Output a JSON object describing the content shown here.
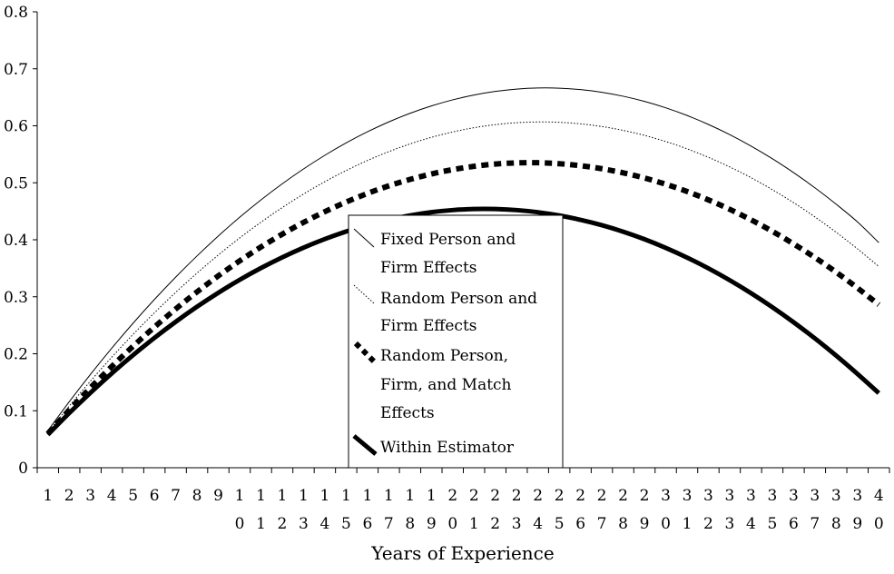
{
  "chart_data": {
    "type": "line",
    "title": "",
    "xlabel": "Years of Experience",
    "ylabel": "",
    "ylim": [
      0,
      0.8
    ],
    "yticks": [
      "0",
      "0.1",
      "0.2",
      "0.3",
      "0.4",
      "0.5",
      "0.6",
      "0.7",
      "0.8"
    ],
    "xlim": [
      1,
      40
    ],
    "x": [
      1,
      2,
      3,
      4,
      5,
      6,
      7,
      8,
      9,
      10,
      11,
      12,
      13,
      14,
      15,
      16,
      17,
      18,
      19,
      20,
      21,
      22,
      23,
      24,
      25,
      26,
      27,
      28,
      29,
      30,
      31,
      32,
      33,
      34,
      35,
      36,
      37,
      38,
      39,
      40
    ],
    "xtick_labels": [
      [
        "1",
        ""
      ],
      [
        "2",
        ""
      ],
      [
        "3",
        ""
      ],
      [
        "4",
        ""
      ],
      [
        "5",
        ""
      ],
      [
        "6",
        ""
      ],
      [
        "7",
        ""
      ],
      [
        "8",
        ""
      ],
      [
        "9",
        ""
      ],
      [
        "1",
        "0"
      ],
      [
        "1",
        "1"
      ],
      [
        "1",
        "2"
      ],
      [
        "1",
        "3"
      ],
      [
        "1",
        "4"
      ],
      [
        "1",
        "5"
      ],
      [
        "1",
        "6"
      ],
      [
        "1",
        "7"
      ],
      [
        "1",
        "8"
      ],
      [
        "1",
        "9"
      ],
      [
        "2",
        "0"
      ],
      [
        "2",
        "1"
      ],
      [
        "2",
        "2"
      ],
      [
        "2",
        "3"
      ],
      [
        "2",
        "4"
      ],
      [
        "2",
        "5"
      ],
      [
        "2",
        "6"
      ],
      [
        "2",
        "7"
      ],
      [
        "2",
        "8"
      ],
      [
        "2",
        "9"
      ],
      [
        "3",
        "0"
      ],
      [
        "3",
        "1"
      ],
      [
        "3",
        "2"
      ],
      [
        "3",
        "3"
      ],
      [
        "3",
        "4"
      ],
      [
        "3",
        "5"
      ],
      [
        "3",
        "6"
      ],
      [
        "3",
        "7"
      ],
      [
        "3",
        "8"
      ],
      [
        "3",
        "9"
      ],
      [
        "4",
        "0"
      ]
    ],
    "grid": false,
    "legend_position": "center",
    "series": [
      {
        "name": "Fixed Person and Firm Effects",
        "style": "thin-solid",
        "values": [
          0.065,
          0.1156,
          0.1638,
          0.2098,
          0.2536,
          0.2952,
          0.3345,
          0.3716,
          0.4066,
          0.4394,
          0.4699,
          0.4982,
          0.5243,
          0.5482,
          0.57,
          0.5895,
          0.6068,
          0.6219,
          0.6348,
          0.6455,
          0.654,
          0.6603,
          0.6644,
          0.6663,
          0.666,
          0.6635,
          0.6588,
          0.6519,
          0.6429,
          0.6316,
          0.6181,
          0.6024,
          0.5846,
          0.5645,
          0.5423,
          0.5178,
          0.4912,
          0.4623,
          0.4313,
          0.395
        ]
      },
      {
        "name": "Random Person and Firm Effects",
        "style": "thin-dotted",
        "values": [
          0.062,
          0.108,
          0.152,
          0.194,
          0.234,
          0.2718,
          0.3077,
          0.3415,
          0.3733,
          0.4031,
          0.4308,
          0.4565,
          0.4802,
          0.5019,
          0.5215,
          0.5391,
          0.5546,
          0.5682,
          0.5797,
          0.5891,
          0.5966,
          0.602,
          0.6054,
          0.6067,
          0.6061,
          0.6034,
          0.5987,
          0.5919,
          0.5832,
          0.5724,
          0.5596,
          0.5447,
          0.5279,
          0.509,
          0.488,
          0.4651,
          0.4401,
          0.4131,
          0.3841,
          0.353
        ]
      },
      {
        "name": "Random Person, Firm, and Match Effects",
        "style": "thick-dashed",
        "values": [
          0.06,
          0.1011,
          0.1403,
          0.1777,
          0.2132,
          0.2468,
          0.2786,
          0.3086,
          0.3367,
          0.3629,
          0.3873,
          0.4098,
          0.4305,
          0.4493,
          0.4662,
          0.4813,
          0.4946,
          0.5059,
          0.5155,
          0.5231,
          0.5289,
          0.5329,
          0.5349,
          0.5352,
          0.5335,
          0.53,
          0.5247,
          0.5175,
          0.5084,
          0.4975,
          0.4847,
          0.47,
          0.4535,
          0.4351,
          0.4149,
          0.3928,
          0.3689,
          0.3431,
          0.3154,
          0.286
        ]
      },
      {
        "name": "Within Estimator",
        "style": "thick-solid",
        "values": [
          0.058,
          0.0958,
          0.1316,
          0.1656,
          0.1976,
          0.2278,
          0.2561,
          0.2825,
          0.307,
          0.3297,
          0.3504,
          0.3692,
          0.3862,
          0.4013,
          0.4145,
          0.4258,
          0.4352,
          0.4427,
          0.4484,
          0.4521,
          0.454,
          0.454,
          0.4521,
          0.4483,
          0.4426,
          0.435,
          0.4256,
          0.4142,
          0.401,
          0.3858,
          0.3688,
          0.3499,
          0.3291,
          0.3064,
          0.2818,
          0.2553,
          0.227,
          0.1967,
          0.1646,
          0.131
        ]
      }
    ]
  }
}
